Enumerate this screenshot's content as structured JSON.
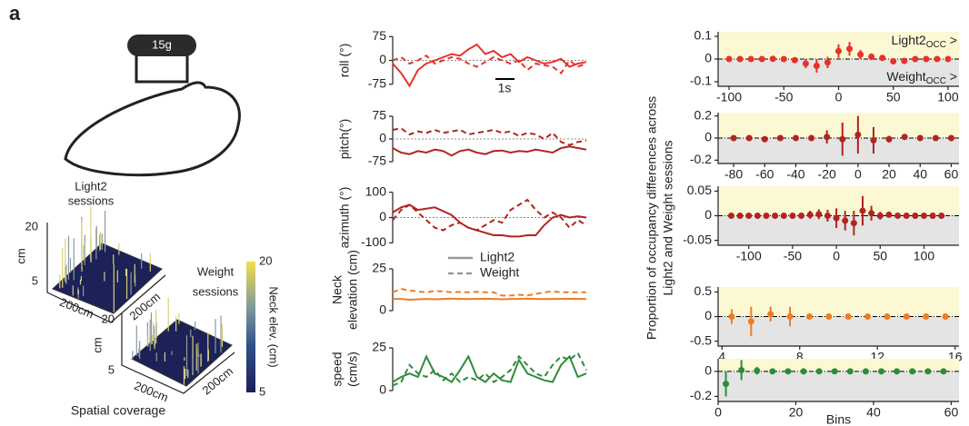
{
  "panel_label": "a",
  "illustration": {
    "weight": "15g"
  },
  "spatial": {
    "title": "Spatial coverage",
    "sessions": [
      {
        "label": [
          "Light2",
          "sessions"
        ],
        "z_label": "cm",
        "z_ticks": [
          20,
          5
        ],
        "x_label": "200cm",
        "y_label": "200cm"
      },
      {
        "label": [
          "Weight",
          "sessions"
        ],
        "z_label": "cm",
        "z_ticks": [
          20,
          5
        ],
        "x_label": "200cm",
        "y_label": "200cm"
      }
    ],
    "colorbar": {
      "label": "Neck elev. (cm)",
      "lim": [
        5,
        20
      ],
      "ticks": [
        20,
        5
      ]
    }
  },
  "legend": [
    {
      "name": "Light2",
      "style": "solid",
      "color": "#999999"
    },
    {
      "name": "Weight",
      "style": "dashed",
      "color": "#999999"
    }
  ],
  "shared_ylabel": [
    "Proportion of occupancy differences across",
    "Light2 and Weight sessions"
  ],
  "chart_data": [
    {
      "type": "line",
      "ylabel": [
        "roll (°)"
      ],
      "ylim": [
        -90,
        90
      ],
      "yticks": [
        75,
        0,
        -75
      ],
      "zero_line": true,
      "scale_bar": "1s",
      "series": [
        {
          "style": "solid",
          "color": "#e8312a",
          "values": [
            -10,
            -40,
            -80,
            -30,
            -10,
            0,
            10,
            20,
            15,
            35,
            50,
            20,
            30,
            10,
            20,
            -5,
            10,
            0,
            -10,
            -5,
            5,
            -20,
            -10,
            -5
          ]
        },
        {
          "style": "dashed",
          "color": "#e8312a",
          "values": [
            0,
            10,
            -10,
            0,
            15,
            -10,
            0,
            10,
            5,
            -10,
            -20,
            -5,
            10,
            0,
            -10,
            0,
            -30,
            -10,
            -15,
            -20,
            -40,
            0,
            -20,
            -10
          ]
        }
      ]
    },
    {
      "type": "line",
      "ylabel": [
        "pitch(°)"
      ],
      "ylim": [
        -90,
        90
      ],
      "yticks": [
        75,
        0,
        -75
      ],
      "zero_line": true,
      "series": [
        {
          "style": "solid",
          "color": "#b3231f",
          "values": [
            -30,
            -45,
            -50,
            -40,
            -45,
            -35,
            -40,
            -55,
            -40,
            -35,
            -45,
            -50,
            -40,
            -38,
            -45,
            -40,
            -42,
            -35,
            -40,
            -45,
            -30,
            -25,
            -30,
            -35
          ]
        },
        {
          "style": "dashed",
          "color": "#b3231f",
          "values": [
            30,
            35,
            15,
            25,
            20,
            30,
            20,
            25,
            30,
            15,
            20,
            25,
            30,
            20,
            25,
            10,
            20,
            15,
            0,
            20,
            -10,
            -20,
            -10,
            -5
          ]
        }
      ]
    },
    {
      "type": "line",
      "ylabel": [
        "azimuth (°)"
      ],
      "ylim": [
        -120,
        120
      ],
      "yticks": [
        100,
        0,
        -100
      ],
      "zero_line": true,
      "series": [
        {
          "style": "solid",
          "color": "#b3231f",
          "values": [
            20,
            40,
            50,
            30,
            35,
            40,
            25,
            10,
            -20,
            -40,
            -50,
            -60,
            -70,
            -70,
            -75,
            -75,
            -70,
            -70,
            -30,
            0,
            10,
            0,
            5,
            0
          ]
        },
        {
          "style": "dashed",
          "color": "#b3231f",
          "values": [
            -10,
            30,
            50,
            20,
            -10,
            -40,
            -50,
            -30,
            -20,
            -40,
            -50,
            -30,
            -10,
            -20,
            30,
            50,
            70,
            30,
            0,
            20,
            0,
            -40,
            -10,
            -30
          ]
        }
      ]
    },
    {
      "type": "line",
      "ylabel": [
        "Neck",
        "elevation (cm)"
      ],
      "ylim": [
        0,
        25
      ],
      "yticks": [
        25,
        0
      ],
      "zero_line": false,
      "series": [
        {
          "style": "solid",
          "color": "#f07c22",
          "values": [
            7,
            7,
            6.5,
            6.8,
            7,
            6.8,
            7,
            7.2,
            7,
            6.9,
            7,
            7.1,
            7,
            6.8,
            7,
            7,
            7.2,
            7,
            6.9,
            7,
            7,
            7.1,
            7,
            7
          ]
        },
        {
          "style": "dashed",
          "color": "#f07c22",
          "values": [
            11,
            13,
            12,
            11.5,
            11,
            11.8,
            11.5,
            11,
            11.2,
            11,
            11.3,
            11,
            11,
            9,
            9,
            9.5,
            9,
            10,
            11,
            11.5,
            11,
            11,
            11,
            11
          ]
        }
      ]
    },
    {
      "type": "line",
      "ylabel": [
        "speed",
        "(cm/s)"
      ],
      "ylim": [
        0,
        25
      ],
      "yticks": [
        25,
        0
      ],
      "zero_line": false,
      "series": [
        {
          "style": "solid",
          "color": "#2e8b3a",
          "values": [
            5,
            8,
            10,
            8,
            20,
            10,
            8,
            5,
            12,
            20,
            8,
            5,
            10,
            6,
            5,
            18,
            10,
            8,
            6,
            5,
            15,
            20,
            8,
            10
          ]
        },
        {
          "style": "dashed",
          "color": "#2e8b3a",
          "values": [
            3,
            5,
            15,
            10,
            8,
            12,
            6,
            10,
            5,
            8,
            6,
            10,
            5,
            8,
            12,
            20,
            15,
            10,
            8,
            15,
            20,
            18,
            22,
            12
          ]
        }
      ]
    },
    {
      "type": "errorbar",
      "color": "#e8312a",
      "ylim": [
        -0.12,
        0.12
      ],
      "yticks": [
        0.1,
        0,
        -0.1
      ],
      "xlim": [
        -110,
        110
      ],
      "xticks": [
        -100,
        -50,
        0,
        50,
        100
      ],
      "annotations": [
        [
          "Light2",
          "OCC",
          " >"
        ],
        [
          "Weight",
          "OCC",
          " >"
        ]
      ],
      "x": [
        -100,
        -90,
        -80,
        -70,
        -60,
        -50,
        -40,
        -30,
        -20,
        -10,
        0,
        10,
        20,
        30,
        40,
        50,
        60,
        70,
        80,
        90,
        100
      ],
      "values": [
        0,
        0,
        0,
        0,
        0.001,
        0,
        -0.005,
        -0.02,
        -0.03,
        -0.015,
        0.035,
        0.045,
        0.02,
        0.01,
        0.005,
        -0.01,
        -0.008,
        0,
        0,
        0,
        0
      ],
      "errors": [
        0.003,
        0.003,
        0.003,
        0.004,
        0.005,
        0.006,
        0.01,
        0.02,
        0.03,
        0.025,
        0.03,
        0.03,
        0.02,
        0.015,
        0.012,
        0.012,
        0.01,
        0.005,
        0.004,
        0.003,
        0.003
      ]
    },
    {
      "type": "errorbar",
      "color": "#b3231f",
      "ylim": [
        -0.23,
        0.23
      ],
      "yticks": [
        0.2,
        0,
        -0.2
      ],
      "xlim": [
        -90,
        65
      ],
      "xticks": [
        -80,
        -60,
        -40,
        -20,
        0,
        20,
        40,
        60
      ],
      "x": [
        -80,
        -70,
        -60,
        -50,
        -40,
        -30,
        -20,
        -10,
        0,
        10,
        20,
        30,
        40,
        50,
        60
      ],
      "values": [
        0,
        0,
        -0.01,
        0,
        0,
        0,
        0.01,
        -0.01,
        0.03,
        -0.02,
        -0.01,
        0.01,
        0,
        0,
        0
      ],
      "errors": [
        0.005,
        0.01,
        0.01,
        0.005,
        0.01,
        0.02,
        0.06,
        0.15,
        0.17,
        0.12,
        0.03,
        0.02,
        0.01,
        0.005,
        0.005
      ]
    },
    {
      "type": "errorbar",
      "color": "#b3231f",
      "ylim": [
        -0.06,
        0.06
      ],
      "yticks": [
        0.05,
        0,
        -0.05
      ],
      "xlim": [
        -135,
        140
      ],
      "xticks": [
        -100,
        -50,
        0,
        50,
        100
      ],
      "x": [
        -120,
        -110,
        -100,
        -90,
        -80,
        -70,
        -60,
        -50,
        -40,
        -30,
        -20,
        -10,
        0,
        10,
        20,
        30,
        40,
        50,
        60,
        70,
        80,
        90,
        100,
        110,
        120
      ],
      "values": [
        0,
        0,
        0,
        0,
        0,
        0,
        0,
        0,
        0,
        0.002,
        0.003,
        0,
        -0.005,
        -0.01,
        -0.015,
        0.01,
        0.005,
        0,
        0.002,
        0,
        0,
        0,
        0,
        0,
        0
      ],
      "errors": [
        0.002,
        0.002,
        0.002,
        0.002,
        0.003,
        0.003,
        0.004,
        0.004,
        0.005,
        0.008,
        0.01,
        0.012,
        0.02,
        0.02,
        0.025,
        0.03,
        0.015,
        0.008,
        0.005,
        0.004,
        0.003,
        0.002,
        0.002,
        0.002,
        0.002
      ]
    },
    {
      "type": "errorbar",
      "color": "#f07c22",
      "ylim": [
        -0.6,
        0.6
      ],
      "yticks": [
        0.5,
        0,
        -0.5
      ],
      "xlim": [
        3.8,
        16.2
      ],
      "xticks": [
        4,
        8,
        12,
        16
      ],
      "x": [
        4.5,
        5.5,
        6.5,
        7.5,
        8.5,
        9.5,
        10.5,
        11.5,
        12.5,
        13.5,
        14.5,
        15.5
      ],
      "values": [
        0,
        -0.1,
        0.05,
        0,
        0,
        0,
        0,
        0,
        0,
        0,
        0,
        0
      ],
      "errors": [
        0.15,
        0.3,
        0.15,
        0.2,
        0.02,
        0.02,
        0.02,
        0.02,
        0.02,
        0.02,
        0.02,
        0.02
      ]
    },
    {
      "type": "errorbar",
      "color": "#2e8b3a",
      "ylim": [
        -0.24,
        0.1
      ],
      "yticks": [
        0,
        -0.2
      ],
      "xlim": [
        0,
        62
      ],
      "xticks": [
        0,
        20,
        40,
        60
      ],
      "xlabel": "Bins",
      "x": [
        2,
        6,
        10,
        14,
        18,
        22,
        26,
        30,
        34,
        38,
        42,
        46,
        50,
        54,
        58
      ],
      "values": [
        -0.1,
        0.01,
        0.005,
        0,
        0,
        0,
        0,
        0,
        0,
        0,
        0,
        0,
        0,
        0,
        0
      ],
      "errors": [
        0.1,
        0.08,
        0.03,
        0.02,
        0.015,
        0.01,
        0.01,
        0.01,
        0.01,
        0.005,
        0.005,
        0.005,
        0.005,
        0.005,
        0.005
      ]
    }
  ]
}
